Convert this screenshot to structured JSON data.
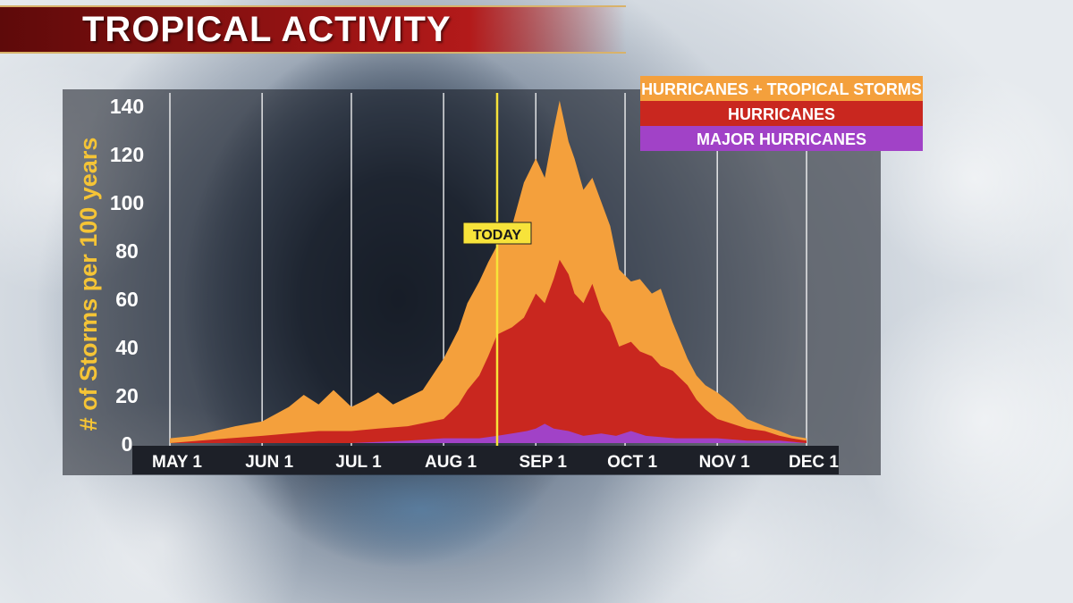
{
  "header": {
    "title": "TROPICAL ACTIVITY"
  },
  "chart_data": {
    "type": "area",
    "ylabel": "# of Storms per 100 years",
    "xlabel": "",
    "ylim": [
      0,
      140
    ],
    "yticks": [
      "0",
      "20",
      "40",
      "60",
      "80",
      "100",
      "120",
      "140"
    ],
    "ytick_values": [
      0,
      20,
      40,
      60,
      80,
      100,
      120,
      140
    ],
    "x_ticks": [
      "MAY 1",
      "JUN 1",
      "JUL 1",
      "AUG 1",
      "SEP 1",
      "OCT 1",
      "NOV 1",
      "DEC 1"
    ],
    "x_tick_days": [
      0,
      31,
      61,
      92,
      123,
      153,
      184,
      214
    ],
    "grid": "vertical",
    "legend_position": "top-right",
    "annotation": {
      "text": "TODAY",
      "day": 110
    },
    "series": [
      {
        "name": "HURRICANES + TROPICAL STORMS",
        "color": "#f4a03c",
        "x": [
          0,
          8,
          15,
          22,
          31,
          40,
          45,
          50,
          55,
          61,
          66,
          70,
          75,
          80,
          85,
          92,
          97,
          100,
          104,
          107,
          110,
          115,
          119,
          123,
          126,
          129,
          131,
          134,
          136,
          139,
          142,
          145,
          148,
          151,
          155,
          158,
          162,
          165,
          169,
          174,
          177,
          180,
          184,
          189,
          194,
          200,
          205,
          209,
          214
        ],
        "values": [
          2,
          3,
          5,
          7,
          9,
          15,
          20,
          16,
          22,
          15,
          18,
          21,
          16,
          19,
          22,
          35,
          47,
          58,
          67,
          75,
          82,
          90,
          108,
          118,
          110,
          130,
          142,
          125,
          118,
          105,
          110,
          100,
          90,
          72,
          67,
          68,
          62,
          64,
          50,
          35,
          28,
          24,
          21,
          16,
          10,
          7,
          5,
          3,
          2
        ]
      },
      {
        "name": "HURRICANES",
        "color": "#c9271f",
        "x": [
          0,
          10,
          20,
          31,
          40,
          50,
          61,
          70,
          80,
          92,
          97,
          100,
          104,
          107,
          110,
          115,
          119,
          123,
          126,
          129,
          131,
          134,
          136,
          139,
          142,
          145,
          148,
          151,
          155,
          158,
          162,
          165,
          169,
          174,
          177,
          180,
          184,
          189,
          194,
          200,
          205,
          209,
          214
        ],
        "values": [
          0,
          1,
          2,
          3,
          4,
          5,
          5,
          6,
          7,
          10,
          16,
          22,
          28,
          36,
          45,
          48,
          52,
          62,
          58,
          68,
          76,
          70,
          62,
          58,
          66,
          55,
          50,
          40,
          42,
          38,
          36,
          32,
          30,
          24,
          18,
          14,
          10,
          8,
          6,
          5,
          3,
          2,
          1
        ]
      },
      {
        "name": "MAJOR HURRICANES",
        "color": "#a142c7",
        "x": [
          0,
          61,
          80,
          92,
          104,
          110,
          115,
          120,
          123,
          126,
          129,
          134,
          139,
          145,
          150,
          155,
          160,
          170,
          184,
          194,
          205,
          214
        ],
        "values": [
          0,
          0,
          1,
          2,
          2,
          3,
          4,
          5,
          6,
          8,
          6,
          5,
          3,
          4,
          3,
          5,
          3,
          2,
          2,
          1,
          1,
          0
        ]
      }
    ]
  }
}
